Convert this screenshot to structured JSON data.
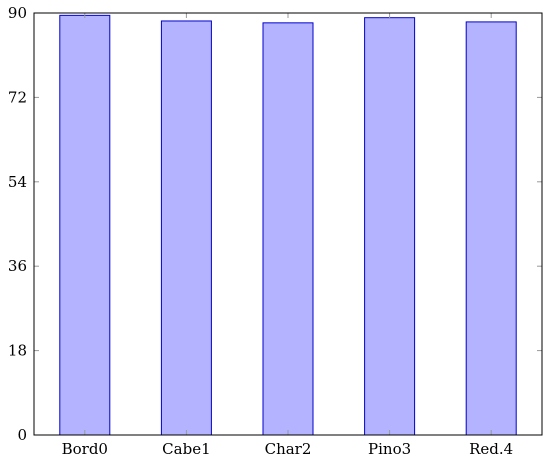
{
  "chart_data": {
    "type": "bar",
    "title": "",
    "xlabel": "",
    "ylabel": "",
    "categories": [
      "Bord0",
      "Cabe1",
      "Char2",
      "Pino3",
      "Red.4"
    ],
    "values": [
      89.5,
      88.3,
      87.9,
      89.0,
      88.1
    ],
    "ylim": [
      0,
      90
    ],
    "yticks": [
      0,
      18,
      36,
      54,
      72,
      90
    ],
    "ytick_labels": [
      "0",
      "18",
      "36",
      "54",
      "72",
      "90"
    ],
    "grid": false,
    "legend": "none",
    "bar_fill": "#b3b3ff",
    "bar_stroke": "#0000cc"
  }
}
